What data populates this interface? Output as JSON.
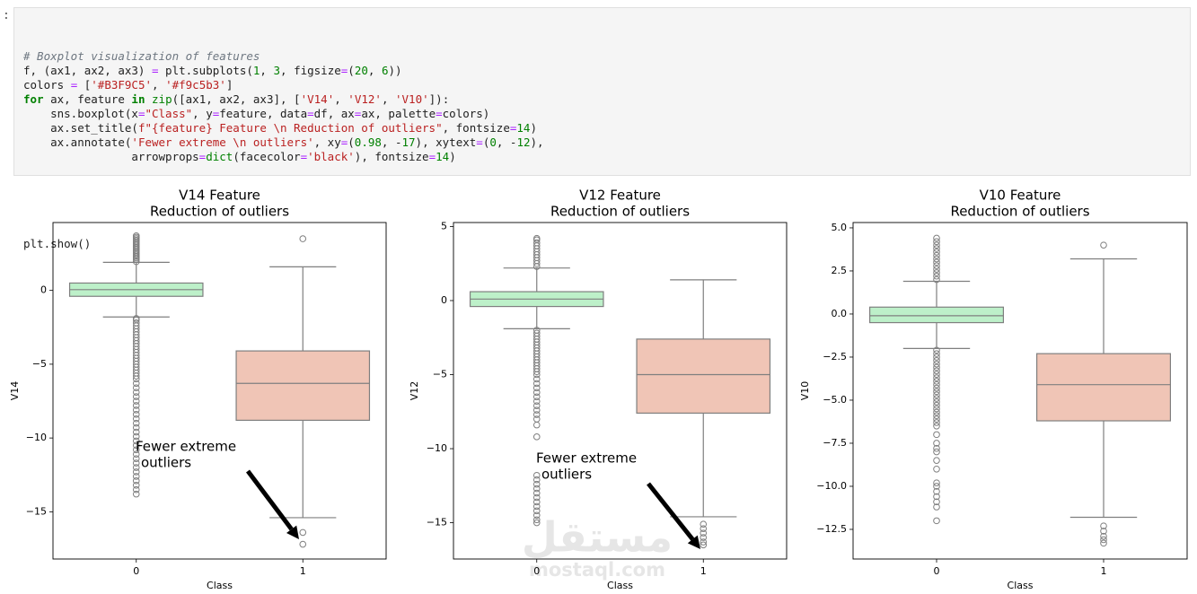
{
  "prompt": ":",
  "code": {
    "lines": [
      "# Boxplot visualization of features",
      "f, (ax1, ax2, ax3) = plt.subplots(1, 3, figsize=(20, 6))",
      "colors = ['#B3F9C5', '#f9c5b3']",
      "for ax, feature in zip([ax1, ax2, ax3], ['V14', 'V12', 'V10']):",
      "    sns.boxplot(x=\"Class\", y=feature, data=df, ax=ax, palette=colors)",
      "    ax.set_title(f\"{feature} Feature \\n Reduction of outliers\", fontsize=14)",
      "    ax.annotate('Fewer extreme \\n outliers', xy=(0.98, -17), xytext=(0, -12),",
      "                arrowprops=dict(facecolor='black'), fontsize=14)"
    ],
    "tail": [
      "plt.show()"
    ]
  },
  "watermark": {
    "logo": "مستقل",
    "site": "mostaql.com"
  },
  "chart_data": [
    {
      "type": "box",
      "title": "V14 Feature",
      "subtitle": "Reduction of outliers",
      "x_label": "Class",
      "y_label": "V14",
      "categories": [
        "0",
        "1"
      ],
      "annotation": [
        "Fewer extreme",
        "outliers"
      ],
      "ylim": [
        -18.2,
        4.6
      ],
      "yticks": [
        {
          "value": -15,
          "label": "−15"
        },
        {
          "value": -10,
          "label": "−10"
        },
        {
          "value": -5,
          "label": "−5"
        },
        0
      ],
      "series": [
        {
          "name": "0",
          "color": "#bdf0c9",
          "whislo": -1.8,
          "q1": -0.4,
          "med": 0.05,
          "q3": 0.5,
          "whishi": 1.9,
          "fliers": [
            1.95,
            2.1,
            2.2,
            2.3,
            2.4,
            2.5,
            2.6,
            2.7,
            2.8,
            2.9,
            3.0,
            3.1,
            3.2,
            3.3,
            3.4,
            3.5,
            3.6,
            3.7,
            -1.9,
            -2.0,
            -2.2,
            -2.4,
            -2.6,
            -2.8,
            -3.0,
            -3.2,
            -3.4,
            -3.6,
            -3.8,
            -4.0,
            -4.2,
            -4.4,
            -4.6,
            -4.8,
            -5.0,
            -5.2,
            -5.4,
            -5.6,
            -5.8,
            -6.0,
            -6.3,
            -6.6,
            -6.9,
            -7.2,
            -7.5,
            -7.8,
            -8.1,
            -8.4,
            -8.7,
            -9.0,
            -9.3,
            -9.6,
            -9.9,
            -10.2,
            -10.5,
            -10.8,
            -11.1,
            -11.4,
            -11.7,
            -12.0,
            -12.3,
            -12.6,
            -12.9,
            -13.2,
            -13.5,
            -13.8
          ]
        },
        {
          "name": "1",
          "color": "#f0c5b6",
          "whislo": -15.4,
          "q1": -8.8,
          "med": -6.3,
          "q3": -4.1,
          "whishi": 1.6,
          "fliers": [
            3.5,
            -16.4,
            -17.2
          ]
        }
      ]
    },
    {
      "type": "box",
      "title": "V12 Feature",
      "subtitle": "Reduction of outliers",
      "x_label": "Class",
      "y_label": "V12",
      "categories": [
        "0",
        "1"
      ],
      "annotation": [
        "Fewer extreme",
        "outliers"
      ],
      "ylim": [
        -17.45,
        5.27
      ],
      "yticks": [
        {
          "value": -15,
          "label": "−15"
        },
        {
          "value": -10,
          "label": "−10"
        },
        {
          "value": -5,
          "label": "−5"
        },
        0,
        5
      ],
      "series": [
        {
          "name": "0",
          "color": "#bdf0c9",
          "whislo": -1.9,
          "q1": -0.4,
          "med": 0.1,
          "q3": 0.6,
          "whishi": 2.2,
          "fliers": [
            2.3,
            2.5,
            2.7,
            2.9,
            3.1,
            3.3,
            3.5,
            3.7,
            3.9,
            4.1,
            4.2,
            -2.0,
            -2.2,
            -2.4,
            -2.6,
            -2.8,
            -3.0,
            -3.2,
            -3.4,
            -3.6,
            -3.8,
            -4.0,
            -4.2,
            -4.4,
            -4.6,
            -4.8,
            -5.0,
            -5.3,
            -5.6,
            -5.9,
            -6.2,
            -6.5,
            -6.8,
            -7.1,
            -7.4,
            -7.7,
            -8.0,
            -8.4,
            -9.2,
            -11.8,
            -12.1,
            -12.4,
            -12.7,
            -13.0,
            -13.3,
            -13.6,
            -13.9,
            -14.2,
            -14.5,
            -14.8,
            -15.0
          ]
        },
        {
          "name": "1",
          "color": "#f0c5b6",
          "whislo": -14.6,
          "q1": -7.6,
          "med": -5.0,
          "q3": -2.6,
          "whishi": 1.4,
          "fliers": [
            -15.1,
            -15.4,
            -15.7,
            -16.0,
            -16.3,
            -16.5
          ]
        }
      ]
    },
    {
      "type": "box",
      "title": "V10 Feature",
      "subtitle": "Reduction of outliers",
      "x_label": "Class",
      "y_label": "V10",
      "categories": [
        "0",
        "1"
      ],
      "ylim": [
        -14.22,
        5.31
      ],
      "yticks": [
        {
          "value": -12.5,
          "label": "−12.5"
        },
        {
          "value": -10,
          "label": "−10.0"
        },
        {
          "value": -7.5,
          "label": "−7.5"
        },
        {
          "value": -5,
          "label": "−5.0"
        },
        {
          "value": -2.5,
          "label": "−2.5"
        },
        {
          "value": 0,
          "label": "0.0"
        },
        2.5,
        {
          "value": 5,
          "label": "5.0"
        }
      ],
      "series": [
        {
          "name": "0",
          "color": "#bdf0c9",
          "whislo": -2.0,
          "q1": -0.5,
          "med": -0.1,
          "q3": 0.4,
          "whishi": 1.9,
          "fliers": [
            2.0,
            2.2,
            2.4,
            2.6,
            2.8,
            3.0,
            3.2,
            3.4,
            3.6,
            3.8,
            4.0,
            4.2,
            4.4,
            -2.1,
            -2.3,
            -2.5,
            -2.7,
            -2.9,
            -3.1,
            -3.3,
            -3.5,
            -3.7,
            -3.9,
            -4.1,
            -4.3,
            -4.5,
            -4.7,
            -4.9,
            -5.1,
            -5.3,
            -5.5,
            -5.7,
            -5.9,
            -6.1,
            -6.3,
            -6.5,
            -7.0,
            -7.5,
            -7.8,
            -8.0,
            -8.5,
            -9.0,
            -9.8,
            -10.0,
            -10.3,
            -10.6,
            -10.9,
            -11.2,
            -12.0
          ]
        },
        {
          "name": "1",
          "color": "#f0c5b6",
          "whislo": -11.8,
          "q1": -6.2,
          "med": -4.1,
          "q3": -2.3,
          "whishi": 3.2,
          "fliers": [
            4.0,
            -12.3,
            -12.6,
            -12.9,
            -13.1,
            -13.3
          ]
        }
      ]
    }
  ]
}
